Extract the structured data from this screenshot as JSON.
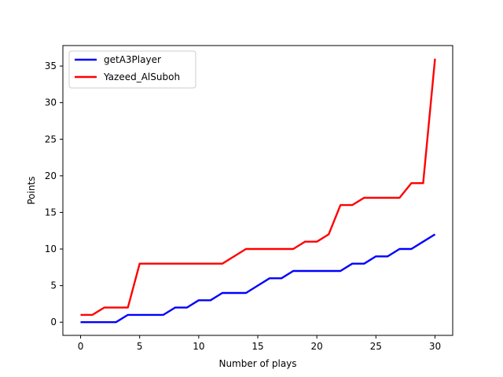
{
  "chart_data": {
    "type": "line",
    "title": "",
    "xlabel": "Number of plays",
    "ylabel": "Points",
    "xlim": [
      -1.5,
      31.5
    ],
    "ylim": [
      -1.8,
      37.8
    ],
    "xticks": [
      0,
      5,
      10,
      15,
      20,
      25,
      30
    ],
    "yticks": [
      0,
      5,
      10,
      15,
      20,
      25,
      30,
      35
    ],
    "grid": false,
    "legend_position": "top-left",
    "x": [
      0,
      1,
      2,
      3,
      4,
      5,
      6,
      7,
      8,
      9,
      10,
      11,
      12,
      13,
      14,
      15,
      16,
      17,
      18,
      19,
      20,
      21,
      22,
      23,
      24,
      25,
      26,
      27,
      28,
      29,
      30
    ],
    "series": [
      {
        "name": "getA3Player",
        "color": "#0000ff",
        "values": [
          0,
          0,
          0,
          0,
          1,
          1,
          1,
          1,
          2,
          2,
          3,
          3,
          4,
          4,
          4,
          5,
          6,
          6,
          7,
          7,
          7,
          7,
          7,
          8,
          8,
          9,
          9,
          10,
          10,
          11,
          12
        ]
      },
      {
        "name": "Yazeed_AlSuboh",
        "color": "#ff0000",
        "values": [
          1,
          1,
          2,
          2,
          2,
          8,
          8,
          8,
          8,
          8,
          8,
          8,
          8,
          9,
          10,
          10,
          10,
          10,
          10,
          11,
          11,
          12,
          16,
          16,
          17,
          17,
          17,
          17,
          19,
          19,
          36
        ]
      }
    ]
  }
}
